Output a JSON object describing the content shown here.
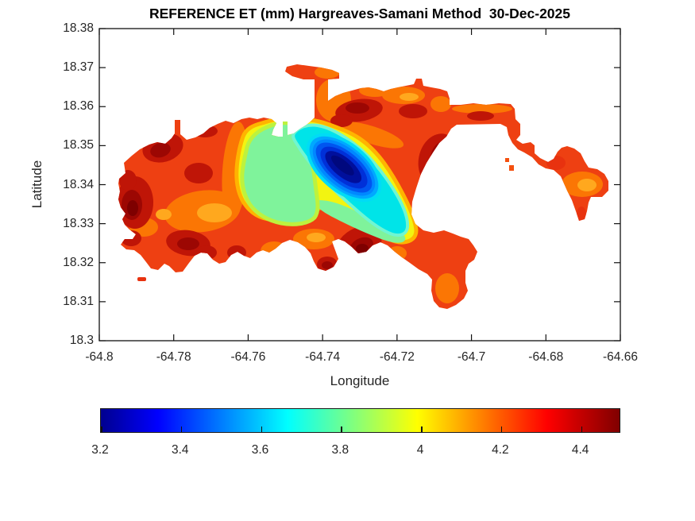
{
  "figure": {
    "title": "REFERENCE ET (mm) Hargreaves-Samani Method  30-Dec-2025",
    "background": "#FFFFFF"
  },
  "axes": {
    "xlabel": "Longitude",
    "ylabel": "Latitude",
    "xlim": [
      -64.8,
      -64.66
    ],
    "ylim": [
      18.3,
      18.38
    ],
    "x_ticks": [
      {
        "value": -64.8,
        "label": "-64.8"
      },
      {
        "value": -64.78,
        "label": "-64.78"
      },
      {
        "value": -64.76,
        "label": "-64.76"
      },
      {
        "value": -64.74,
        "label": "-64.74"
      },
      {
        "value": -64.72,
        "label": "-64.72"
      },
      {
        "value": -64.7,
        "label": "-64.7"
      },
      {
        "value": -64.68,
        "label": "-64.68"
      },
      {
        "value": -64.66,
        "label": "-64.66"
      }
    ],
    "y_ticks": [
      {
        "value": 18.3,
        "label": "18.3"
      },
      {
        "value": 18.31,
        "label": "18.31"
      },
      {
        "value": 18.32,
        "label": "18.32"
      },
      {
        "value": 18.33,
        "label": "18.33"
      },
      {
        "value": 18.34,
        "label": "18.34"
      },
      {
        "value": 18.35,
        "label": "18.35"
      },
      {
        "value": 18.36,
        "label": "18.36"
      },
      {
        "value": 18.37,
        "label": "18.37"
      },
      {
        "value": 18.38,
        "label": "18.38"
      }
    ]
  },
  "colorbar": {
    "orientation": "horizontal",
    "colormap": "jet",
    "range": [
      3.2,
      4.5
    ],
    "ticks": [
      {
        "value": 3.2,
        "label": "3.2"
      },
      {
        "value": 3.4,
        "label": "3.4"
      },
      {
        "value": 3.6,
        "label": "3.6"
      },
      {
        "value": 3.8,
        "label": "3.8"
      },
      {
        "value": 4,
        "label": "4"
      },
      {
        "value": 4.2,
        "label": "4.2"
      },
      {
        "value": 4.4,
        "label": "4.4"
      }
    ]
  },
  "palette": {
    "jet_low": "#00008F",
    "navy_core": "#00087E",
    "blue": "#0055F0",
    "light_blue": "#00A8FF",
    "cyan": "#00E4E8",
    "green": "#7FF39B",
    "yellow": "#F2F411",
    "orange": "#FB7604",
    "light_orange": "#FFA81E",
    "red_base": "#EE4012",
    "dark_red": "#BF1507",
    "darkest_red": "#7E0000"
  },
  "chart_data": {
    "type": "contour",
    "title": "REFERENCE ET (mm) Hargreaves-Samani Method  30-Dec-2025",
    "xlabel": "Longitude",
    "ylabel": "Latitude",
    "xlim": [
      -64.8,
      -64.66
    ],
    "ylim": [
      18.3,
      18.38
    ],
    "units": "mm",
    "colormap": "jet",
    "value_range": [
      3.2,
      4.5
    ],
    "colorbar_ticks": [
      3.2,
      3.4,
      3.6,
      3.8,
      4,
      4.2,
      4.4
    ],
    "grid": false,
    "description": "Filled contour (contourf) map of daily reference evapotranspiration over an island (St. Thomas, US Virgin Islands). Ocean/background is white; the island is mostly red/orange (high ET) with a blue low-ET core on the central ridge.",
    "features": [
      {
        "feature": "minimum ET core (dark blue)",
        "lon": -64.734,
        "lat": 18.344,
        "et_mm": 3.2
      },
      {
        "feature": "cool zone green-cyan-blue gradient",
        "lon_range": [
          -64.76,
          -64.71
        ],
        "lat_range": [
          18.33,
          18.357
        ],
        "et_mm_range": [
          3.2,
          3.9
        ]
      },
      {
        "feature": "dominant island surface (red/orange)",
        "et_mm_range": [
          4.0,
          4.4
        ]
      },
      {
        "feature": "dark-red hot spots (west tip, north-center, center-south, east of cool zone)",
        "et_mm_range": [
          4.4,
          4.5
        ]
      },
      {
        "feature": "island extent",
        "lon_range": [
          -64.795,
          -64.663
        ],
        "lat_range": [
          18.308,
          18.371
        ]
      }
    ]
  }
}
